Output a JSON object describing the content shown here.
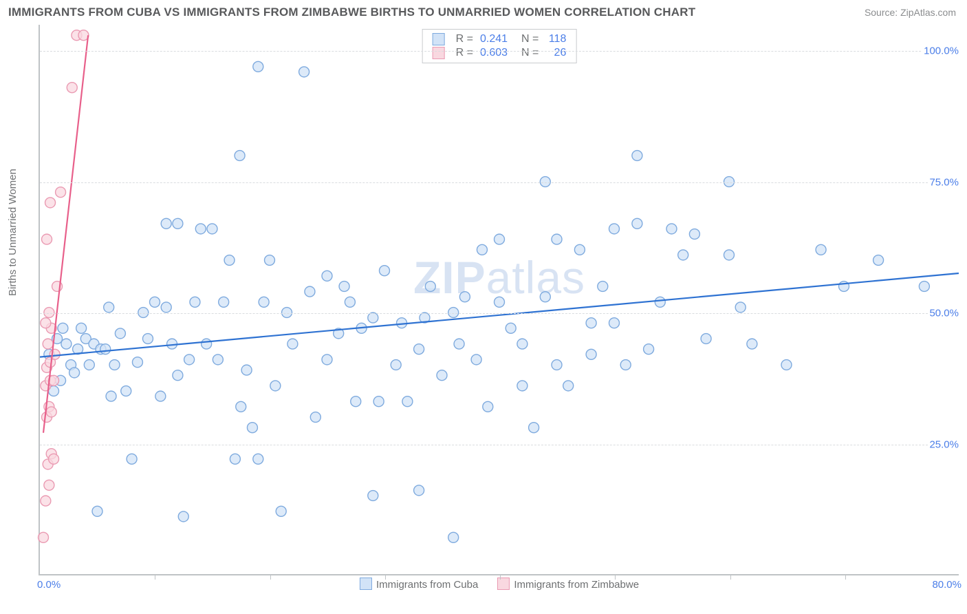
{
  "title": "IMMIGRANTS FROM CUBA VS IMMIGRANTS FROM ZIMBABWE BIRTHS TO UNMARRIED WOMEN CORRELATION CHART",
  "source_label": "Source: ",
  "source_link_text": "ZipAtlas.com",
  "ylabel": "Births to Unmarried Women",
  "watermark_bold": "ZIP",
  "watermark_rest": "atlas",
  "chart": {
    "type": "scatter",
    "xlim": [
      0,
      80
    ],
    "ylim": [
      0,
      105
    ],
    "xticks": [
      10,
      20,
      30,
      40,
      50,
      60,
      70
    ],
    "xtick_label_start": "0.0%",
    "xtick_label_end": "80.0%",
    "ygrid": [
      25,
      50,
      75,
      100
    ],
    "ytick_labels": [
      "25.0%",
      "50.0%",
      "75.0%",
      "100.0%"
    ],
    "grid_color": "#d9dcdf",
    "axis_color": "#bfc3c6",
    "background_color": "#ffffff",
    "marker_radius": 7.5,
    "marker_stroke_width": 1.4,
    "line_width": 2.2,
    "series": [
      {
        "name": "Immigrants from Cuba",
        "fill": "#d2e3f7",
        "stroke": "#7eaade",
        "line_color": "#2e72d2",
        "R": "0.241",
        "N": "118",
        "trend": {
          "x1": 0,
          "y1": 41.5,
          "x2": 80,
          "y2": 57.5
        },
        "points": [
          [
            0.8,
            42
          ],
          [
            1.2,
            35
          ],
          [
            1.5,
            45
          ],
          [
            1.8,
            37
          ],
          [
            2,
            47
          ],
          [
            2.3,
            44
          ],
          [
            2.7,
            40
          ],
          [
            3,
            38.5
          ],
          [
            3.3,
            43
          ],
          [
            3.6,
            47
          ],
          [
            4,
            45
          ],
          [
            4.3,
            40
          ],
          [
            4.7,
            44
          ],
          [
            5,
            12
          ],
          [
            5.3,
            43
          ],
          [
            5.7,
            43
          ],
          [
            6,
            51
          ],
          [
            6.2,
            34
          ],
          [
            6.5,
            40
          ],
          [
            7,
            46
          ],
          [
            7.5,
            35
          ],
          [
            8,
            22
          ],
          [
            8.5,
            40.5
          ],
          [
            9,
            50
          ],
          [
            9.4,
            45
          ],
          [
            10,
            52
          ],
          [
            10.5,
            34
          ],
          [
            11,
            51
          ],
          [
            11,
            67
          ],
          [
            11.5,
            44
          ],
          [
            12,
            38
          ],
          [
            12,
            67
          ],
          [
            12.5,
            11
          ],
          [
            13,
            41
          ],
          [
            13.5,
            52
          ],
          [
            14,
            66
          ],
          [
            14.5,
            44
          ],
          [
            15,
            66
          ],
          [
            15.5,
            41
          ],
          [
            16,
            52
          ],
          [
            16.5,
            60
          ],
          [
            17,
            22
          ],
          [
            17.4,
            80
          ],
          [
            17.5,
            32
          ],
          [
            18,
            39
          ],
          [
            18.5,
            28
          ],
          [
            19,
            22
          ],
          [
            19,
            97
          ],
          [
            19.5,
            52
          ],
          [
            20,
            60
          ],
          [
            20.5,
            36
          ],
          [
            21,
            12
          ],
          [
            21.5,
            50
          ],
          [
            22,
            44
          ],
          [
            23,
            96
          ],
          [
            23.5,
            54
          ],
          [
            24,
            30
          ],
          [
            25,
            57
          ],
          [
            25,
            41
          ],
          [
            26,
            46
          ],
          [
            26.5,
            55
          ],
          [
            27,
            52
          ],
          [
            27.5,
            33
          ],
          [
            28,
            47
          ],
          [
            29,
            15
          ],
          [
            29,
            49
          ],
          [
            29.5,
            33
          ],
          [
            30,
            58
          ],
          [
            31,
            40
          ],
          [
            31.5,
            48
          ],
          [
            32,
            33
          ],
          [
            33,
            16
          ],
          [
            33,
            43
          ],
          [
            33.5,
            49
          ],
          [
            34,
            55
          ],
          [
            35,
            38
          ],
          [
            36,
            50
          ],
          [
            36,
            7
          ],
          [
            36.5,
            44
          ],
          [
            37,
            53
          ],
          [
            38,
            41
          ],
          [
            38.5,
            62
          ],
          [
            39,
            32
          ],
          [
            40,
            52
          ],
          [
            40,
            64
          ],
          [
            41,
            47
          ],
          [
            42,
            44
          ],
          [
            42,
            36
          ],
          [
            43,
            28
          ],
          [
            44,
            75
          ],
          [
            44,
            53
          ],
          [
            45,
            64
          ],
          [
            45,
            40
          ],
          [
            46,
            36
          ],
          [
            47,
            62
          ],
          [
            48,
            42
          ],
          [
            48,
            48
          ],
          [
            49,
            55
          ],
          [
            50,
            66
          ],
          [
            50,
            48
          ],
          [
            51,
            40
          ],
          [
            52,
            80
          ],
          [
            52,
            67
          ],
          [
            53,
            43
          ],
          [
            54,
            52
          ],
          [
            55,
            66
          ],
          [
            56,
            61
          ],
          [
            57,
            65
          ],
          [
            58,
            45
          ],
          [
            60,
            75
          ],
          [
            60,
            61
          ],
          [
            61,
            51
          ],
          [
            62,
            44
          ],
          [
            65,
            40
          ],
          [
            68,
            62
          ],
          [
            70,
            55
          ],
          [
            73,
            60
          ],
          [
            77,
            55
          ]
        ]
      },
      {
        "name": "Immigrants from Zimbabwe",
        "fill": "#f9d8e0",
        "stroke": "#ea9ab2",
        "line_color": "#e85f8a",
        "R": "0.603",
        "N": "26",
        "trend": {
          "x1": 0.3,
          "y1": 27,
          "x2": 4.2,
          "y2": 103
        },
        "points": [
          [
            0.3,
            7
          ],
          [
            0.5,
            14
          ],
          [
            0.7,
            21
          ],
          [
            0.8,
            17
          ],
          [
            1.0,
            23
          ],
          [
            1.2,
            22
          ],
          [
            0.6,
            30
          ],
          [
            0.8,
            32
          ],
          [
            1.0,
            31
          ],
          [
            0.5,
            36
          ],
          [
            0.9,
            37
          ],
          [
            1.2,
            37
          ],
          [
            0.6,
            39.5
          ],
          [
            0.9,
            40.5
          ],
          [
            1.3,
            42
          ],
          [
            0.7,
            44
          ],
          [
            1.0,
            47
          ],
          [
            0.5,
            48
          ],
          [
            0.8,
            50
          ],
          [
            1.5,
            55
          ],
          [
            0.6,
            64
          ],
          [
            0.9,
            71
          ],
          [
            1.8,
            73
          ],
          [
            2.8,
            93
          ],
          [
            3.2,
            103
          ],
          [
            3.8,
            103
          ]
        ]
      }
    ]
  },
  "top_legend": {
    "rows": [
      {
        "swatch_idx": 0,
        "R_label": "R =",
        "N_label": "N ="
      },
      {
        "swatch_idx": 1,
        "R_label": "R =",
        "N_label": "N ="
      }
    ]
  }
}
